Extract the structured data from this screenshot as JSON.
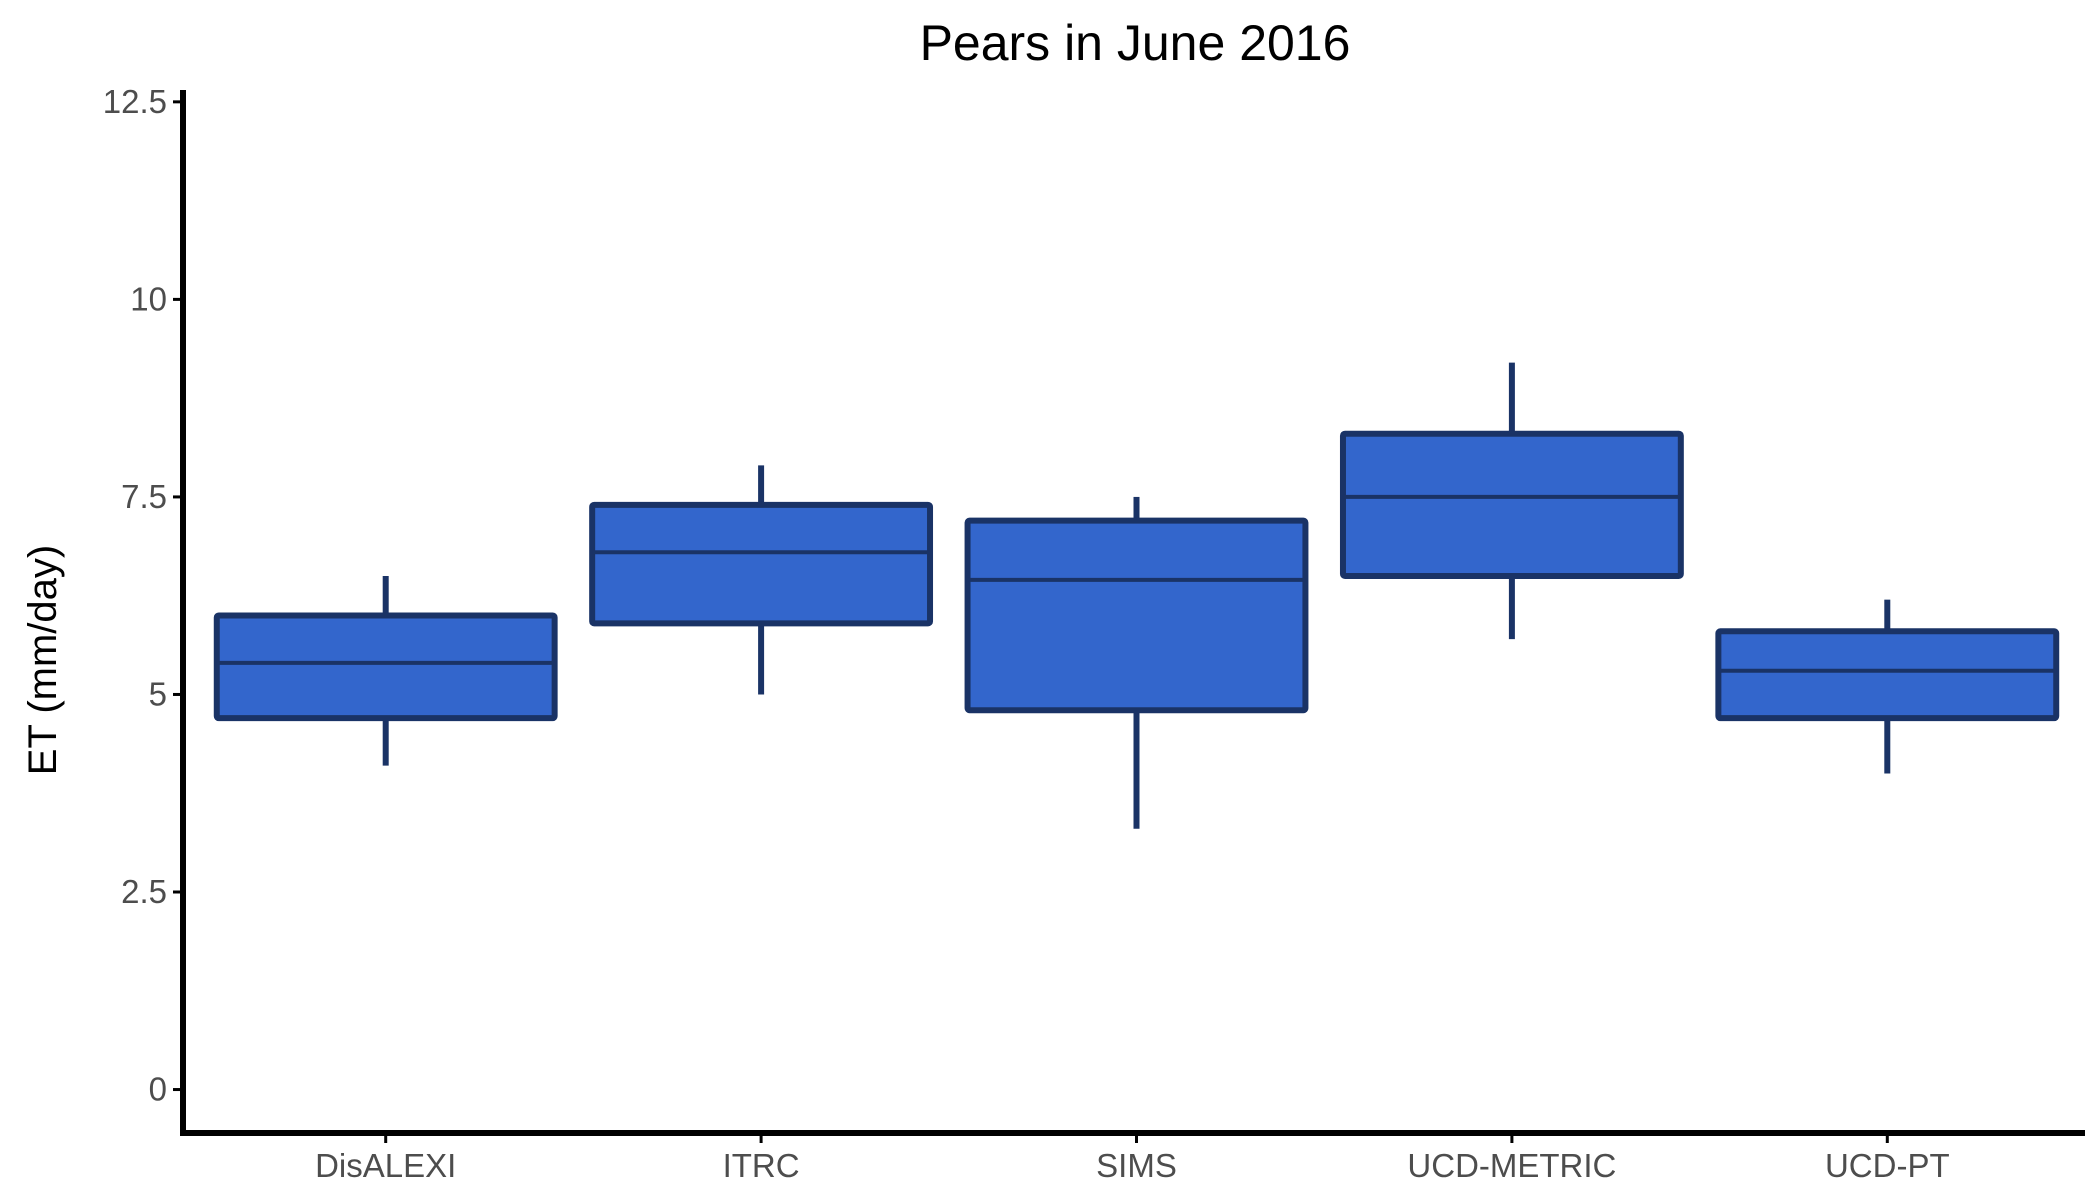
{
  "chart_data": {
    "type": "boxplot",
    "title": "Pears in June 2016",
    "xlabel": "",
    "ylabel": "ET (mm/day)",
    "ylim": [
      -0.55,
      12.65
    ],
    "yticks": [
      0,
      2.5,
      5,
      7.5,
      10,
      12.5
    ],
    "ytick_labels": [
      "0",
      "2.5",
      "5",
      "7.5",
      "10",
      "12.5"
    ],
    "grid": false,
    "legend": "none",
    "categories": [
      "DisALEXI",
      "ITRC",
      "SIMS",
      "UCD-METRIC",
      "UCD-PT"
    ],
    "boxes": [
      {
        "category": "DisALEXI",
        "whisker_low": 4.1,
        "q1": 4.7,
        "median": 5.4,
        "q3": 6.0,
        "whisker_high": 6.5
      },
      {
        "category": "ITRC",
        "whisker_low": 5.0,
        "q1": 5.9,
        "median": 6.8,
        "q3": 7.4,
        "whisker_high": 7.9
      },
      {
        "category": "SIMS",
        "whisker_low": 3.3,
        "q1": 4.8,
        "median": 6.45,
        "q3": 7.2,
        "whisker_high": 7.5
      },
      {
        "category": "UCD-METRIC",
        "whisker_low": 5.7,
        "q1": 6.5,
        "median": 7.5,
        "q3": 8.3,
        "whisker_high": 9.2
      },
      {
        "category": "UCD-PT",
        "whisker_low": 4.0,
        "q1": 4.7,
        "median": 5.3,
        "q3": 5.8,
        "whisker_high": 6.2
      }
    ],
    "colors": {
      "box_fill": "#3366cc",
      "box_outline": "#1a3366",
      "axis": "#000000",
      "tick_label": "#4d4d4d",
      "title": "#000000"
    }
  }
}
